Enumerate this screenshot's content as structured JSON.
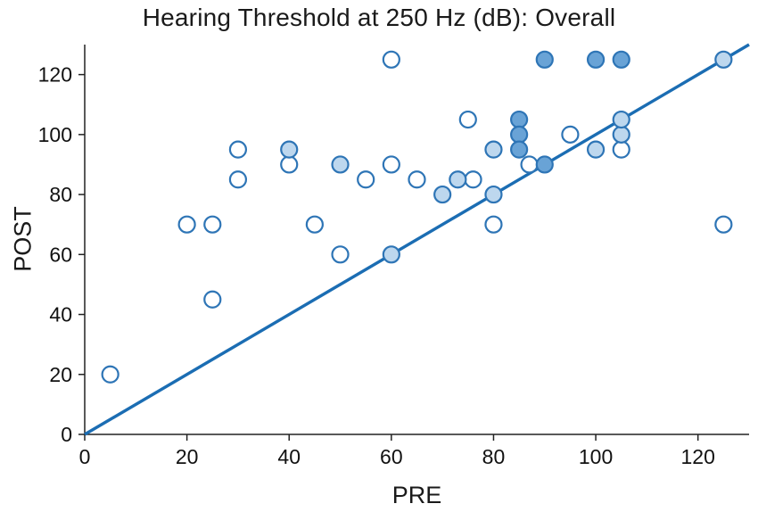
{
  "chart_data": {
    "type": "scatter",
    "title": "Hearing Threshold at 250 Hz (dB): Overall",
    "xlabel": "PRE",
    "ylabel": "POST",
    "xlim": [
      0,
      130
    ],
    "ylim": [
      0,
      130
    ],
    "xticks": [
      0,
      20,
      40,
      60,
      80,
      100,
      120
    ],
    "yticks": [
      0,
      20,
      40,
      60,
      80,
      100,
      120
    ],
    "grid": false,
    "legend": false,
    "identity_line": {
      "from": [
        0,
        0
      ],
      "to": [
        130,
        130
      ]
    },
    "colors": {
      "line": "#1b6db3",
      "marker_stroke": "#2e75b6",
      "fill_open": "#ffffff",
      "fill_light": "#bdd7ee",
      "fill_dark": "#69a3d6",
      "axis": "#222222",
      "text": "#111111"
    },
    "series": [
      {
        "fill": "open",
        "points": [
          [
            5,
            20
          ],
          [
            20,
            70
          ],
          [
            25,
            70
          ],
          [
            25,
            45
          ],
          [
            30,
            95
          ],
          [
            30,
            85
          ],
          [
            40,
            90
          ],
          [
            45,
            70
          ],
          [
            50,
            60
          ],
          [
            55,
            85
          ],
          [
            60,
            90
          ],
          [
            60,
            125
          ],
          [
            65,
            85
          ],
          [
            75,
            105
          ],
          [
            76,
            85
          ],
          [
            80,
            70
          ],
          [
            87,
            90
          ],
          [
            95,
            100
          ],
          [
            105,
            95
          ],
          [
            125,
            70
          ]
        ]
      },
      {
        "fill": "light",
        "points": [
          [
            40,
            95
          ],
          [
            50,
            90
          ],
          [
            60,
            60
          ],
          [
            70,
            80
          ],
          [
            73,
            85
          ],
          [
            80,
            95
          ],
          [
            80,
            80
          ],
          [
            100,
            95
          ],
          [
            105,
            100
          ],
          [
            105,
            105
          ],
          [
            125,
            125
          ]
        ]
      },
      {
        "fill": "dark",
        "points": [
          [
            85,
            105
          ],
          [
            85,
            100
          ],
          [
            85,
            95
          ],
          [
            90,
            90
          ],
          [
            90,
            125
          ],
          [
            100,
            125
          ],
          [
            105,
            125
          ]
        ]
      }
    ]
  }
}
